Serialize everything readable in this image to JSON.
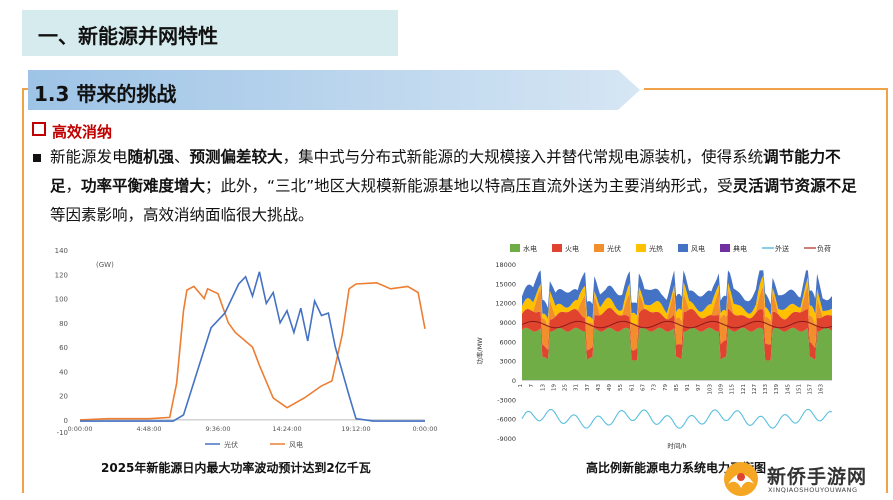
{
  "title": "一、新能源并网特性",
  "section": "1.3 带来的挑战",
  "subheading": "高效消纳",
  "paragraph": [
    {
      "t": "新能源发电",
      "b": false
    },
    {
      "t": "随机强",
      "b": true
    },
    {
      "t": "、",
      "b": false
    },
    {
      "t": "预测偏差较大",
      "b": true
    },
    {
      "t": "，集中式与分布式新能源的大规模接入并替代常规电源装机，使得系统",
      "b": false
    },
    {
      "t": "调节能力不足",
      "b": true
    },
    {
      "t": "，",
      "b": false
    },
    {
      "t": "功率平衡难度增大",
      "b": true
    },
    {
      "t": "；此外，“三北”地区大规模新能源基地以特高压直流外送为主要消纳形式，受",
      "b": false
    },
    {
      "t": "灵活调节资源不足",
      "b": true
    },
    {
      "t": "等因素影响，高效消纳面临很大挑战。",
      "b": false
    }
  ],
  "chart_left": {
    "unit": "(GW)",
    "yticks": [
      "140",
      "120",
      "100",
      "80",
      "60",
      "40",
      "20",
      "0",
      "-10"
    ],
    "xticks": [
      "0:00:00",
      "4:48:00",
      "9:36:00",
      "14:24:00",
      "19:12:00",
      "0:00:00"
    ],
    "legend": [
      "光伏",
      "风电"
    ],
    "colors": {
      "solar": "#4472c4",
      "wind": "#ed7d31"
    },
    "caption": "2025年新能源日内最大功率波动预计达到2亿千瓦"
  },
  "chart_right": {
    "legend": [
      "水电",
      "火电",
      "光伏",
      "光热",
      "风电",
      "典电",
      "外送",
      "负荷"
    ],
    "legend_colors": [
      "#70ad47",
      "#e0442e",
      "#f28e2b",
      "#ffc000",
      "#4472c4",
      "#7030a0",
      "#5bc0de",
      "#c0504d"
    ],
    "yticks": [
      "18000",
      "15000",
      "12000",
      "9000",
      "6000",
      "3000",
      "0",
      "-3000",
      "-6000",
      "-9000"
    ],
    "xticks": [
      "1",
      "7",
      "13",
      "19",
      "25",
      "31",
      "37",
      "43",
      "49",
      "55",
      "61",
      "67",
      "73",
      "79",
      "85",
      "91",
      "97",
      "103",
      "109",
      "115",
      "121",
      "127",
      "133",
      "139",
      "145",
      "151",
      "157",
      "163"
    ],
    "ylabel": "功率/MW",
    "xlabel": "时间/h",
    "caption": "高比例新能源电力系统电力平衡图"
  },
  "logo": {
    "name": "新侨手游网",
    "sub": "XINQIAOSHOUYOUWANG"
  }
}
